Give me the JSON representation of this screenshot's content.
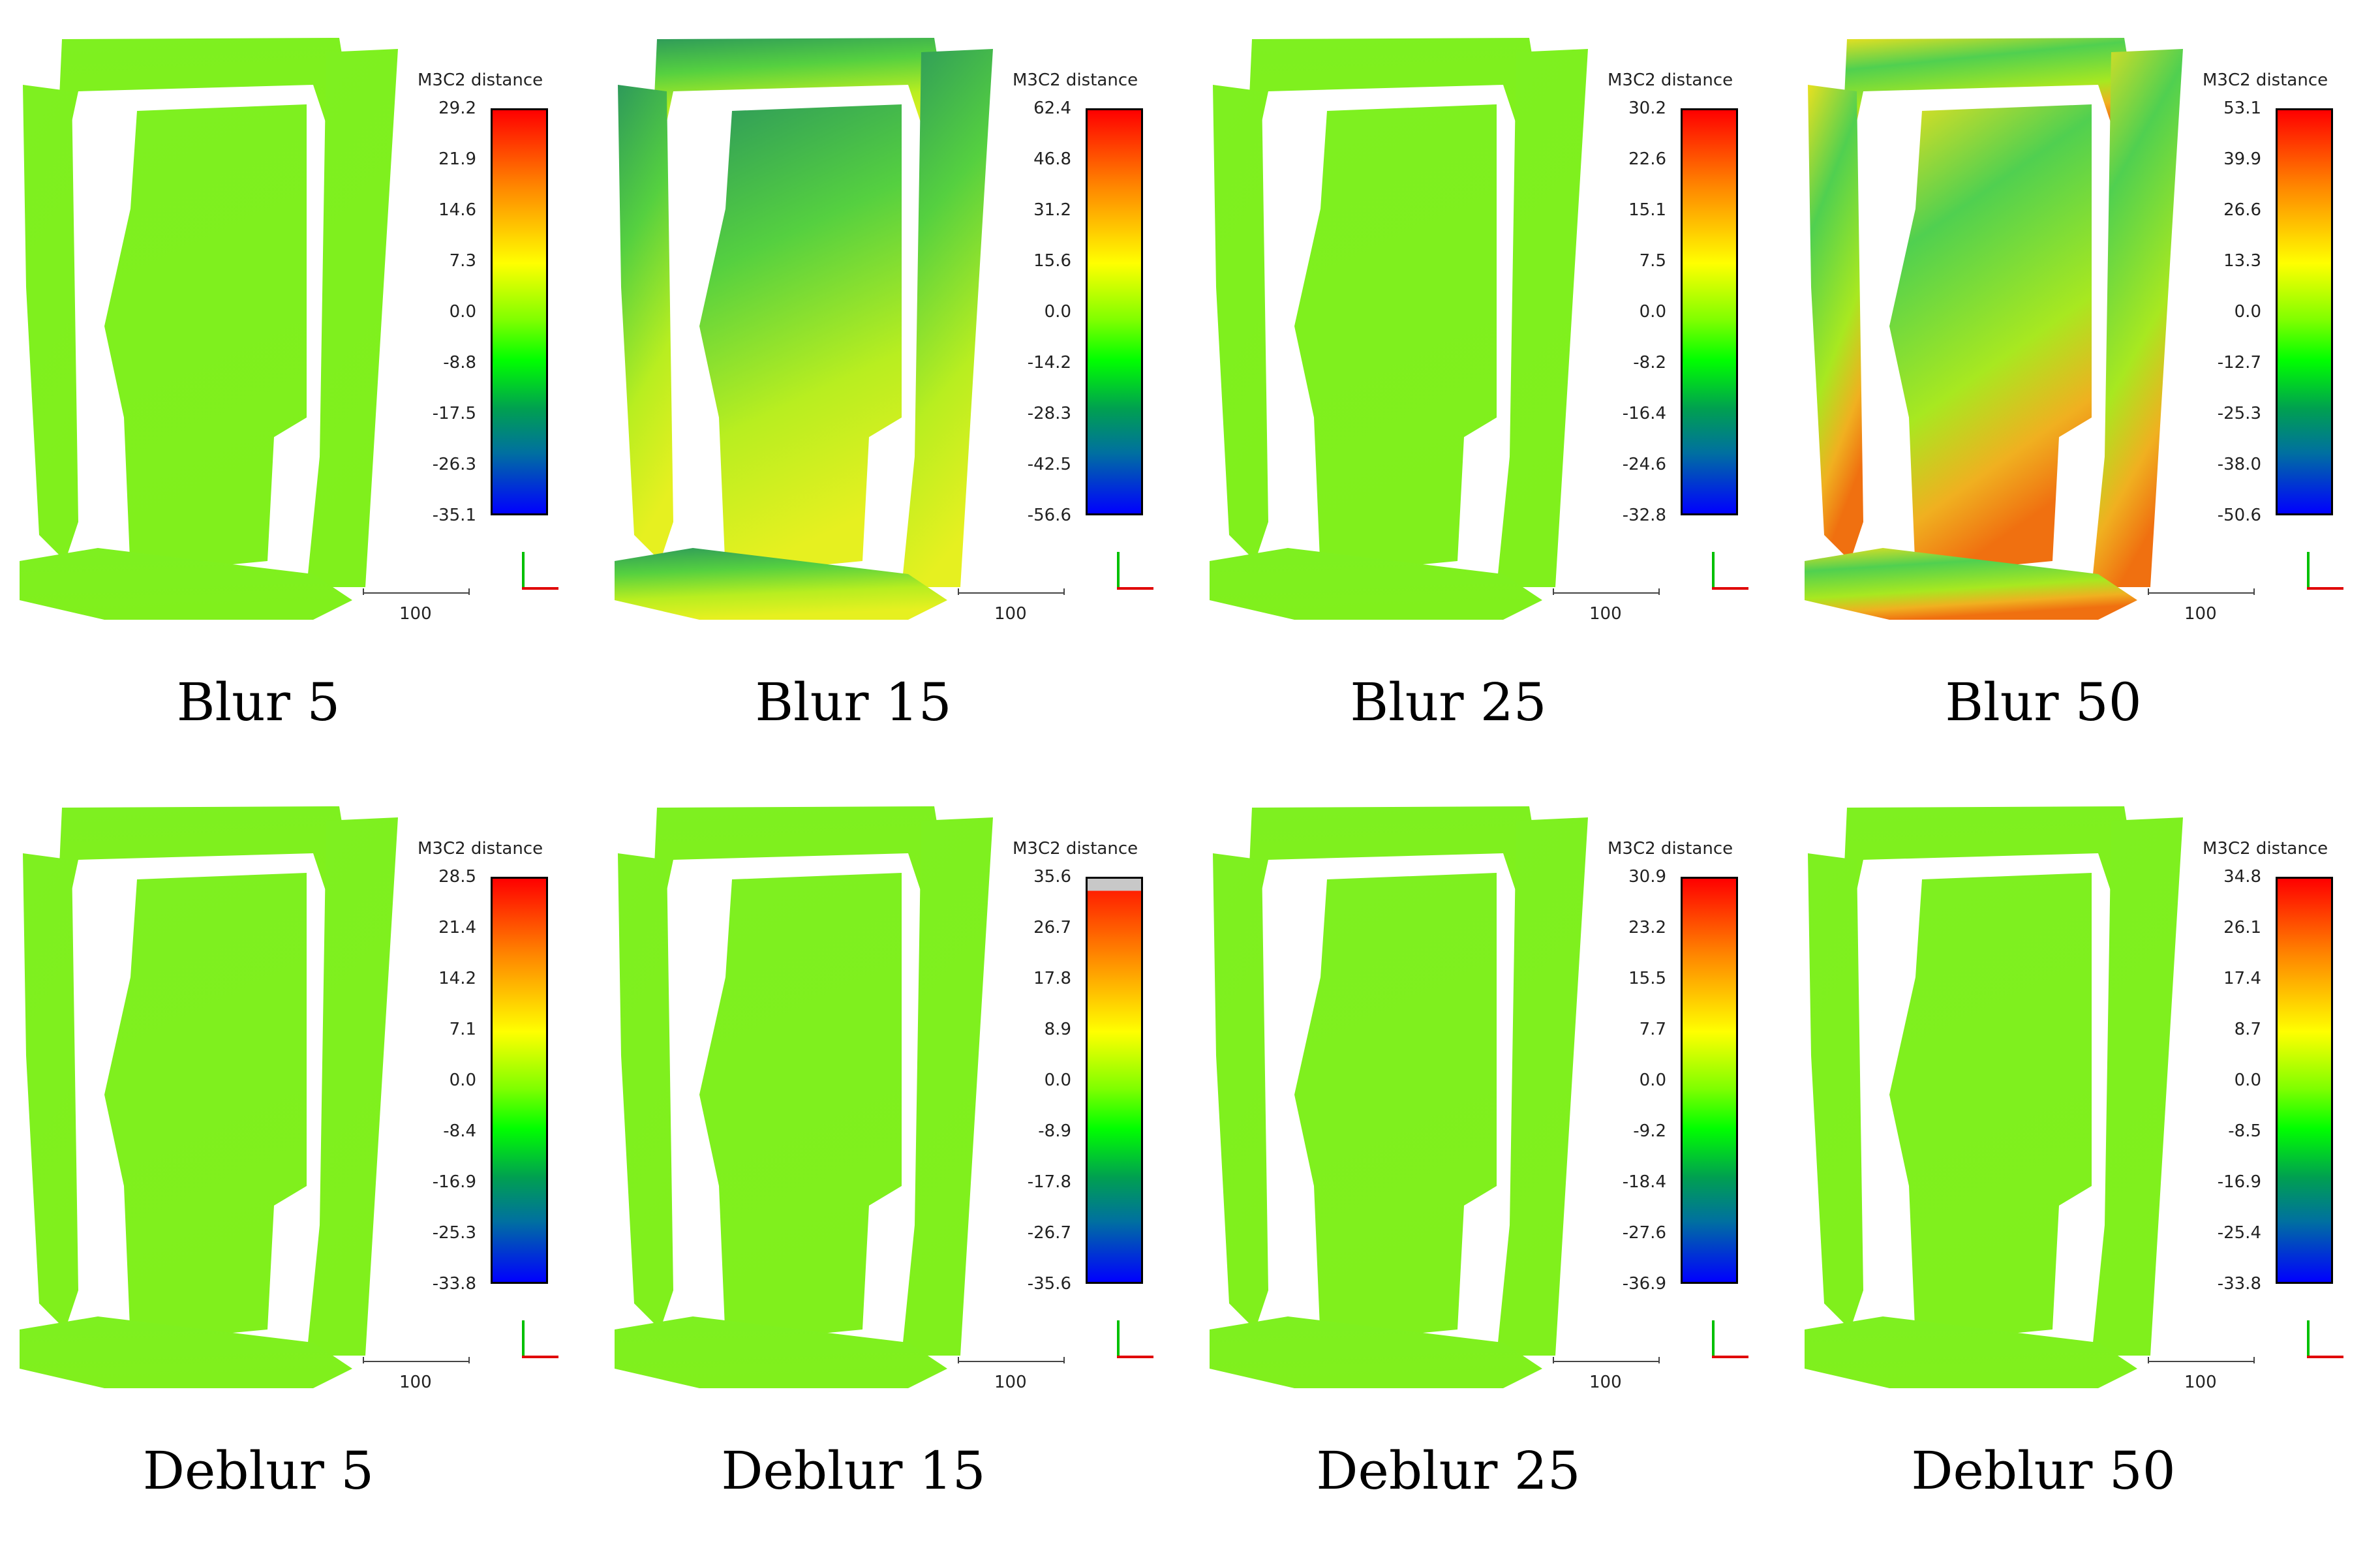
{
  "legend_title": "M3C2 distance",
  "scale_label": "100",
  "palette": {
    "red": "#ff0000",
    "orange": "#ff8000",
    "yellow": "#ffff00",
    "lime": "#80ff00",
    "green": "#00ff00",
    "teal": "#00a050",
    "blue": "#0000ff",
    "nan_gray": "#c8c8c8"
  },
  "panels": [
    {
      "caption": "Blur 5",
      "ticks": [
        "29.2",
        "21.9",
        "14.6",
        "7.3",
        "0.0",
        "-8.8",
        "-17.5",
        "-26.3",
        "-35.1"
      ],
      "cloud": "uniform-lime"
    },
    {
      "caption": "Blur 15",
      "ticks": [
        "62.4",
        "46.8",
        "31.2",
        "15.6",
        "0.0",
        "-14.2",
        "-28.3",
        "-42.5",
        "-56.6"
      ],
      "cloud": "gradient-yellow-green"
    },
    {
      "caption": "Blur 25",
      "ticks": [
        "30.2",
        "22.6",
        "15.1",
        "7.5",
        "0.0",
        "-8.2",
        "-16.4",
        "-24.6",
        "-32.8"
      ],
      "cloud": "uniform-lime"
    },
    {
      "caption": "Blur 50",
      "ticks": [
        "53.1",
        "39.9",
        "26.6",
        "13.3",
        "0.0",
        "-12.7",
        "-25.3",
        "-38.0",
        "-50.6"
      ],
      "cloud": "gradient-orange-green"
    },
    {
      "caption": "Deblur 5",
      "ticks": [
        "28.5",
        "21.4",
        "14.2",
        "7.1",
        "0.0",
        "-8.4",
        "-16.9",
        "-25.3",
        "-33.8"
      ],
      "cloud": "uniform-lime"
    },
    {
      "caption": "Deblur 15",
      "ticks": [
        "35.6",
        "26.7",
        "17.8",
        "8.9",
        "0.0",
        "-8.9",
        "-17.8",
        "-26.7",
        "-35.6"
      ],
      "cloud": "uniform-lime",
      "nan_band": true
    },
    {
      "caption": "Deblur 25",
      "ticks": [
        "30.9",
        "23.2",
        "15.5",
        "7.7",
        "0.0",
        "-9.2",
        "-18.4",
        "-27.6",
        "-36.9"
      ],
      "cloud": "uniform-lime"
    },
    {
      "caption": "Deblur 50",
      "ticks": [
        "34.8",
        "26.1",
        "17.4",
        "8.7",
        "0.0",
        "-8.5",
        "-16.9",
        "-25.4",
        "-33.8"
      ],
      "cloud": "uniform-lime"
    }
  ]
}
